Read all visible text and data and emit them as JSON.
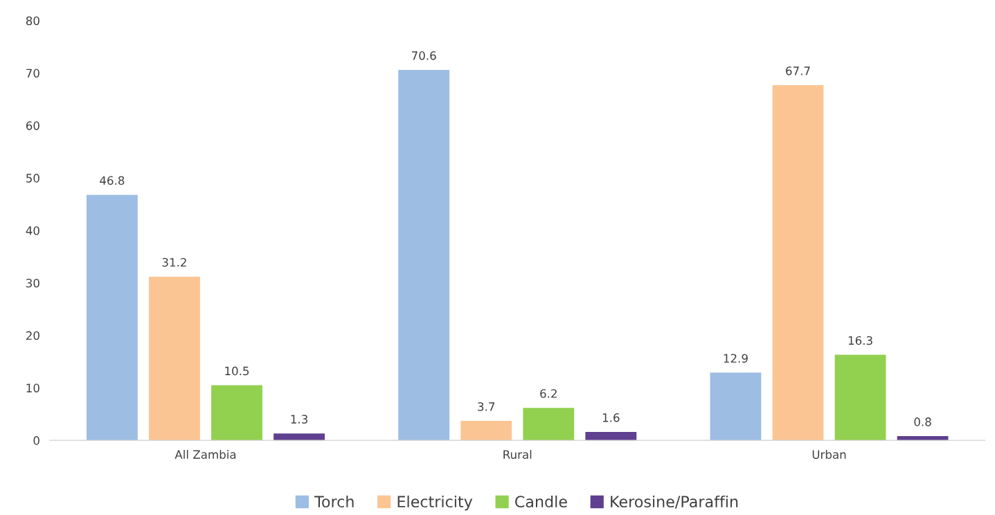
{
  "chart_data": {
    "type": "bar",
    "categories": [
      "All Zambia",
      "Rural",
      "Urban"
    ],
    "series": [
      {
        "name": "Torch",
        "color": "#9dbde3",
        "values": [
          46.8,
          70.6,
          12.9
        ]
      },
      {
        "name": "Electricity",
        "color": "#fbc593",
        "values": [
          31.2,
          3.7,
          67.7
        ]
      },
      {
        "name": "Candle",
        "color": "#92d050",
        "values": [
          10.5,
          6.2,
          16.3
        ]
      },
      {
        "name": "Kerosine/Paraffin",
        "color": "#5f3f8f",
        "values": [
          1.3,
          1.6,
          0.8
        ]
      }
    ],
    "ylim": [
      0,
      80
    ],
    "yticks": [
      0,
      10,
      20,
      30,
      40,
      50,
      60,
      70,
      80
    ],
    "grid": false,
    "legend": "bottom",
    "data_labels": true
  }
}
